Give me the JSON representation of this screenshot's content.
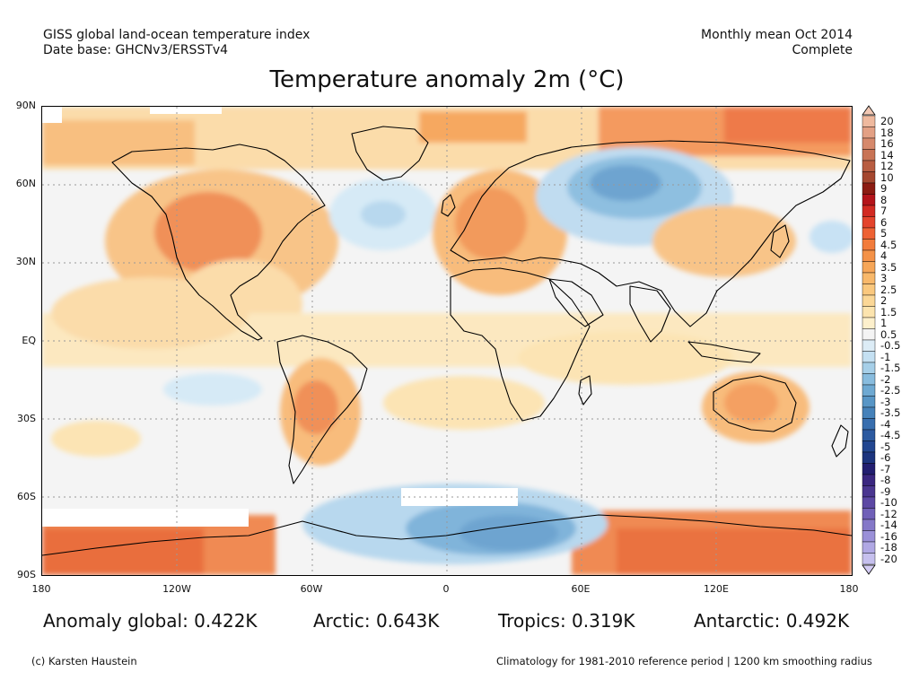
{
  "header": {
    "line1_left": "GISS global land-ocean temperature index",
    "line2_left": "Date base: GHCNv3/ERSSTv4",
    "line1_right": "Monthly mean Oct 2014",
    "line2_right": "Complete"
  },
  "title": "Temperature anomaly 2m (°C)",
  "lat_labels": [
    "90N",
    "60N",
    "30N",
    "EQ",
    "30S",
    "60S",
    "90S"
  ],
  "lon_labels": [
    "180",
    "120W",
    "60W",
    "0",
    "60E",
    "120E",
    "180"
  ],
  "colorbar": {
    "levels": [
      "20",
      "18",
      "16",
      "14",
      "12",
      "10",
      "9",
      "8",
      "7",
      "6",
      "5",
      "4.5",
      "4",
      "3.5",
      "3",
      "2.5",
      "2",
      "1.5",
      "1",
      "0.5",
      "-0.5",
      "-1",
      "-1.5",
      "-2",
      "-2.5",
      "-3",
      "-3.5",
      "-4",
      "-4.5",
      "-5",
      "-6",
      "-7",
      "-8",
      "-9",
      "-10",
      "-12",
      "-14",
      "-16",
      "-18",
      "-20"
    ],
    "colors": [
      "#efb99e",
      "#e3a084",
      "#d6896c",
      "#c87355",
      "#b85d41",
      "#a5472f",
      "#8c1c12",
      "#b4141a",
      "#d22a22",
      "#e4442c",
      "#ee6234",
      "#f27c3c",
      "#f49248",
      "#f6a658",
      "#f8b86a",
      "#fac87e",
      "#fbd796",
      "#fce4ae",
      "#fdf0cc",
      "#f4f4f4",
      "#dcecf6",
      "#c4e0f2",
      "#a6cfe8",
      "#88bcde",
      "#6ea9d2",
      "#5896c6",
      "#4682ba",
      "#386eae",
      "#2c5aa0",
      "#224690",
      "#1c347e",
      "#221e70",
      "#3a2780",
      "#4a3690",
      "#5c48a4",
      "#7060b8",
      "#8478c8",
      "#9a90d8",
      "#b0a8e4",
      "#c6c0ee"
    ],
    "top_arrow_color": "#f2c8b4",
    "bottom_arrow_color": "#d4ccf4"
  },
  "stats": [
    {
      "label": "Anomaly global: 0.422K"
    },
    {
      "label": "Arctic: 0.643K"
    },
    {
      "label": "Tropics: 0.319K"
    },
    {
      "label": "Antarctic: 0.492K"
    }
  ],
  "footer": {
    "left": "(c) Karsten Haustein",
    "right": "Climatology for 1981-2010 reference period | 1200 km smoothing radius"
  },
  "colors": {
    "background": "#f4f4f4",
    "warm_light": "#fbe2b0",
    "warm": "#f8bf80",
    "warm_strong": "#f49a5e",
    "hot": "#ee7a48",
    "cool_light": "#d6eaf6",
    "cool": "#a8cde6",
    "cool_strong": "#6fa4d2",
    "coast": "#000000"
  }
}
